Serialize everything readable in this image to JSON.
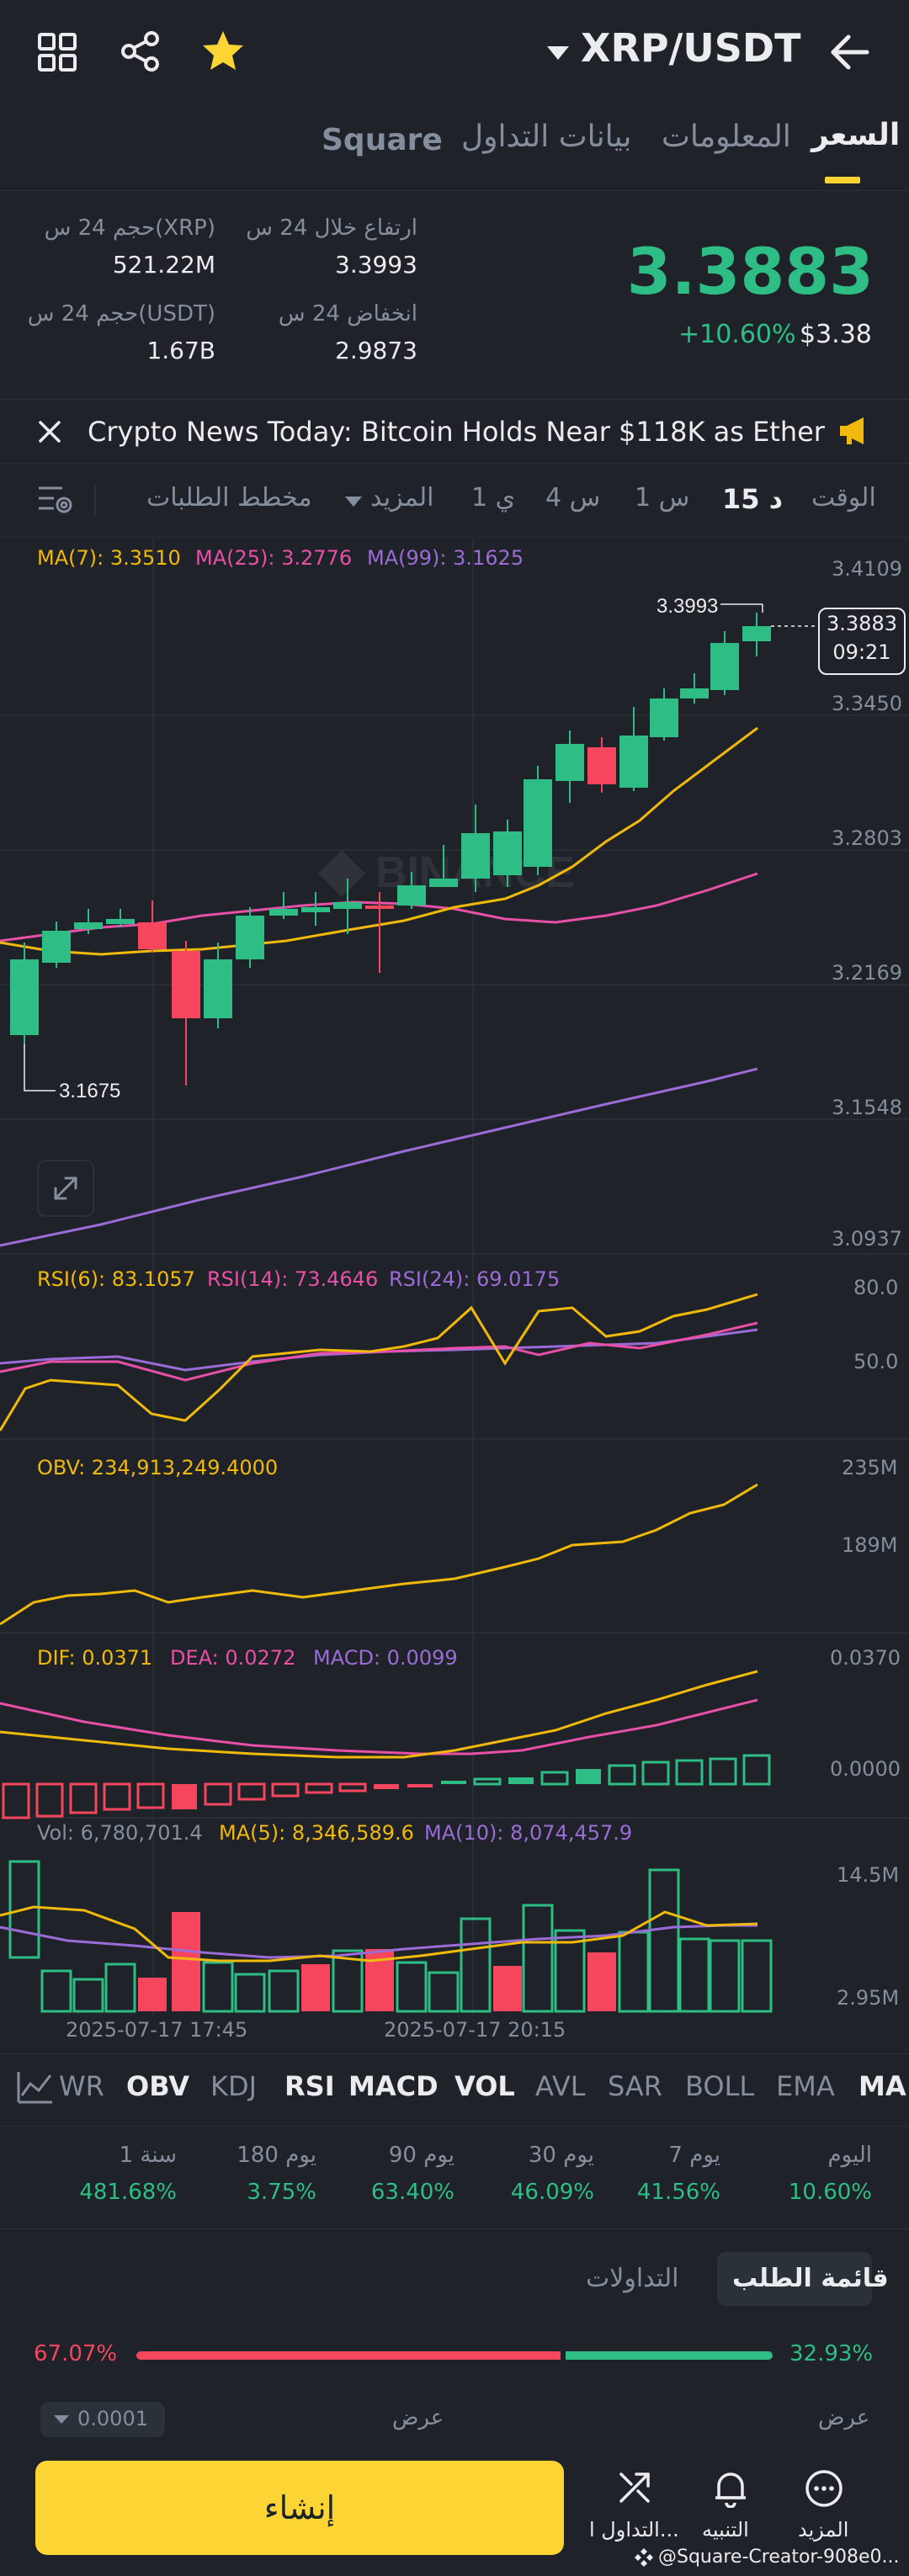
{
  "header": {
    "pair": "XRP/USDT",
    "tabs": [
      "السعر",
      "المعلومات",
      "بيانات التداول",
      "Square"
    ],
    "active_tab": "السعر"
  },
  "ticker": {
    "last_price": "3.3883",
    "change_pct": "+10.60%",
    "usd_price": "$3.38",
    "stats": {
      "high_label": "ارتفاع خلال 24 س",
      "high_value": "3.3993",
      "vol_xrp_label": "حجم 24 س(XRP)",
      "vol_xrp_value": "521.22M",
      "low_label": "انخفاض 24 س",
      "low_value": "2.9873",
      "vol_usdt_label": "حجم 24 س(USDT)",
      "vol_usdt_value": "1.67B"
    }
  },
  "news": {
    "text": "Crypto News Today: Bitcoin Holds Near $118K as Ether a..."
  },
  "toolbar": {
    "time_label": "الوقت",
    "intervals": [
      "15 د",
      "1 س",
      "4 س",
      "1 ي"
    ],
    "active_interval": "15 د",
    "more_label": "المزيد",
    "depth_label": "مخطط الطلبات"
  },
  "main_chart": {
    "ma7": "MA(7): 3.3510",
    "ma25": "MA(25): 3.2776",
    "ma99": "MA(99): 3.1625",
    "axis": [
      "3.4109",
      "3.3450",
      "3.2803",
      "3.2169",
      "3.1548",
      "3.0937"
    ],
    "high_marker": "3.3993",
    "low_marker": "3.1675",
    "current_price": "3.3883",
    "countdown": "09:21",
    "watermark": "BINANCE"
  },
  "rsi": {
    "rsi6": "RSI(6): 83.1057",
    "rsi14": "RSI(14): 73.4646",
    "rsi24": "RSI(24): 69.0175",
    "axis": [
      "80.0",
      "50.0"
    ]
  },
  "obv": {
    "label": "OBV: 234,913,249.4000",
    "axis": [
      "235M",
      "189M"
    ]
  },
  "macd": {
    "dif": "DIF: 0.0371",
    "dea": "DEA: 0.0272",
    "macd": "MACD: 0.0099",
    "axis": [
      "0.0370",
      "0.0000"
    ]
  },
  "vol": {
    "vol": "Vol: 6,780,701.4",
    "ma5": "MA(5): 8,346,589.6",
    "ma10": "MA(10): 8,074,457.9",
    "axis": [
      "14.5M",
      "2.95M"
    ],
    "time_labels": [
      "2025-07-17 17:45",
      "2025-07-17 20:15"
    ]
  },
  "indicator_tabs": [
    "MA",
    "EMA",
    "BOLL",
    "SAR",
    "AVL",
    "VOL",
    "MACD",
    "RSI",
    "KDJ",
    "OBV",
    "WR"
  ],
  "indicator_active": [
    "MA",
    "VOL",
    "MACD",
    "RSI",
    "OBV"
  ],
  "performance": [
    {
      "label": "اليوم",
      "value": "10.60%"
    },
    {
      "label": "7 يوم",
      "value": "41.56%"
    },
    {
      "label": "30 يوم",
      "value": "46.09%"
    },
    {
      "label": "90 يوم",
      "value": "63.40%"
    },
    {
      "label": "180 يوم",
      "value": "3.75%"
    },
    {
      "label": "1 سنة",
      "value": "481.68%"
    }
  ],
  "orderbook": {
    "tab_active": "قائمة الطلب",
    "tab_other": "التداولات",
    "buy_pct": "32.93%",
    "sell_pct": "67.07%",
    "buy_ratio": 0.3293,
    "bid_label": "عرض",
    "ask_label": "عرض",
    "precision": "0.0001"
  },
  "bottom": {
    "more": "المزيد",
    "alert": "التنبيه",
    "trade": "التداول ا...",
    "create": "إنشاء",
    "credit": "@Square-Creator-908e0..."
  },
  "colors": {
    "up": "#2ebd85",
    "down": "#f6465d",
    "ma7": "#f0b90b",
    "ma25": "#e84fa6",
    "ma99": "#9b6bd6",
    "accent": "#fcd535"
  }
}
